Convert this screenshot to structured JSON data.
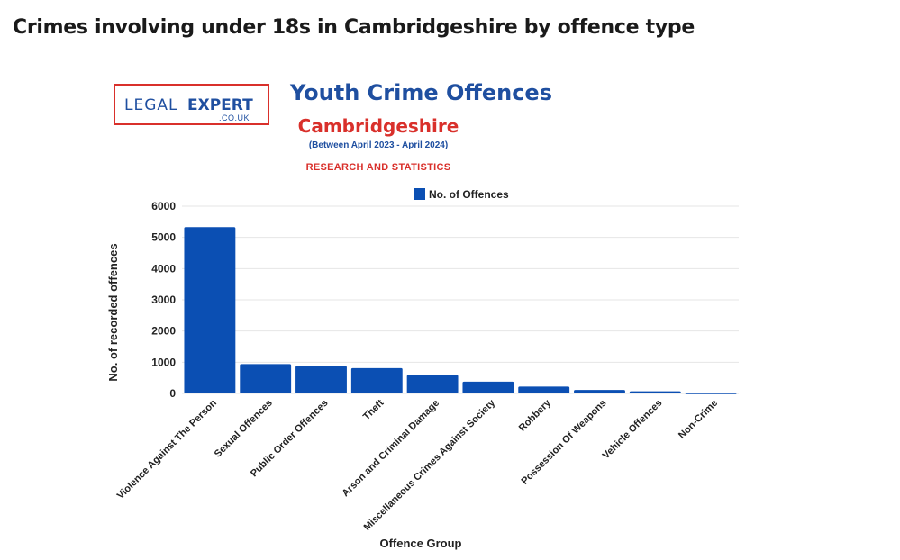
{
  "page": {
    "heading": "Crimes involving under 18s in Cambridgeshire by offence type"
  },
  "logo": {
    "left_text": "LEGAL",
    "right_text": "EXPERT",
    "sub_text": ".CO.UK"
  },
  "colors": {
    "bar": "#0b4fb3",
    "title_blue": "#1f4fa0",
    "accent_red": "#d9302b",
    "grid": "#e6e6e6"
  },
  "chart_data": {
    "type": "bar",
    "title": "Youth Crime Offences",
    "subtitle": "Cambridgeshire",
    "period": "(Between April 2023 - April 2024)",
    "tagline": "RESEARCH AND STATISTICS",
    "xlabel": "Offence Group",
    "ylabel": "No. of recorded offences",
    "ylim": [
      0,
      6000
    ],
    "yticks": [
      0,
      1000,
      2000,
      3000,
      4000,
      5000,
      6000
    ],
    "grid": true,
    "legend_position": "top",
    "categories": [
      "Violence Against The Person",
      "Sexual Offences",
      "Public Order Offences",
      "Theft",
      "Arson and Criminal Damage",
      "Miscellaneous Crimes Against Society",
      "Robbery",
      "Possession Of Weapons",
      "Vehicle Offences",
      "Non-Crime"
    ],
    "series": [
      {
        "name": "No. of Offences",
        "values": [
          5330,
          940,
          880,
          810,
          590,
          380,
          220,
          110,
          70,
          20
        ]
      }
    ]
  }
}
